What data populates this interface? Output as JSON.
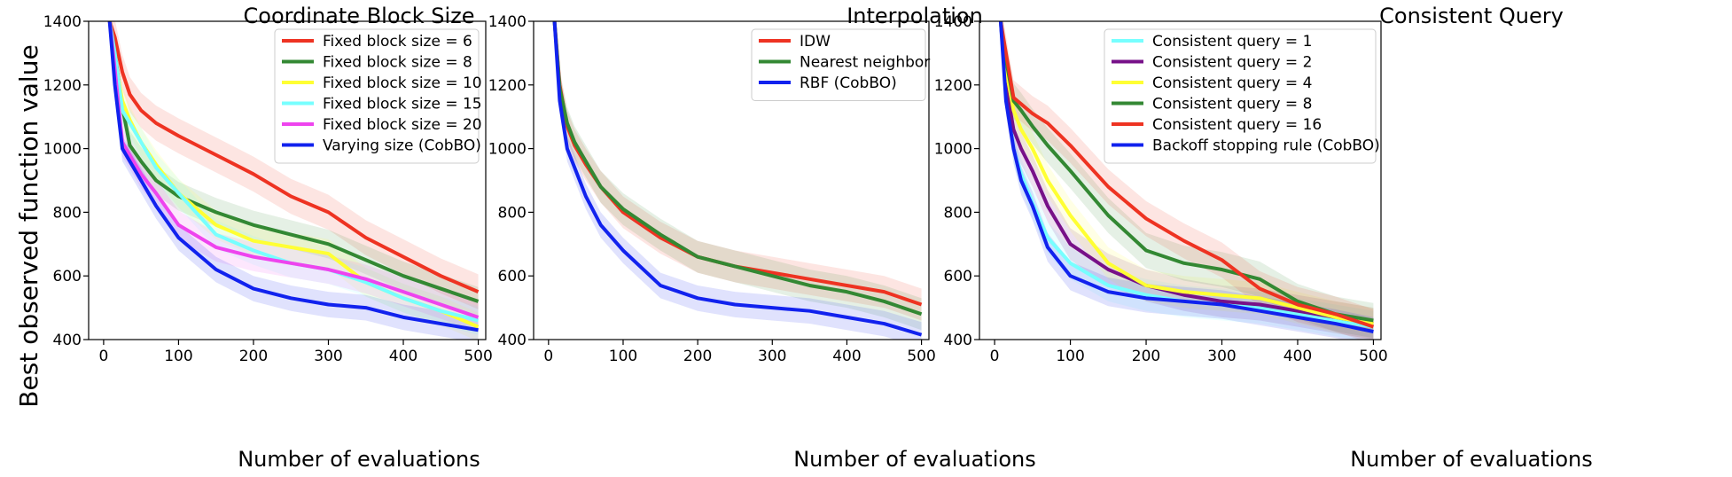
{
  "figure": {
    "ylabel": "Best observed function value"
  },
  "chart_data": [
    {
      "type": "line",
      "title": "Coordinate Block Size",
      "xlabel": "Number of evaluations",
      "ylabel": "Best observed function value",
      "xlim": [
        -20,
        510
      ],
      "ylim": [
        400,
        1400
      ],
      "xticks": [
        0,
        100,
        200,
        300,
        400,
        500
      ],
      "yticks": [
        400,
        600,
        800,
        1000,
        1200,
        1400
      ],
      "legend_position": "top-right",
      "series": [
        {
          "name": "Fixed block size = 6",
          "color": "#ee3322",
          "x": [
            8,
            15,
            25,
            35,
            50,
            70,
            100,
            150,
            200,
            250,
            300,
            350,
            400,
            450,
            500
          ],
          "y": [
            1400,
            1350,
            1240,
            1170,
            1120,
            1080,
            1040,
            980,
            920,
            850,
            800,
            720,
            660,
            600,
            550
          ],
          "band": 55
        },
        {
          "name": "Fixed block size = 8",
          "color": "#338833",
          "x": [
            8,
            15,
            25,
            35,
            50,
            70,
            100,
            150,
            200,
            250,
            300,
            350,
            400,
            450,
            500
          ],
          "y": [
            1400,
            1300,
            1130,
            1010,
            960,
            900,
            850,
            800,
            760,
            730,
            700,
            650,
            600,
            560,
            520
          ],
          "band": 45
        },
        {
          "name": "Fixed block size = 10",
          "color": "#ffff33",
          "x": [
            8,
            15,
            25,
            35,
            50,
            70,
            100,
            150,
            200,
            250,
            300,
            350,
            400,
            450,
            500
          ],
          "y": [
            1400,
            1280,
            1150,
            1090,
            1020,
            950,
            860,
            760,
            710,
            690,
            670,
            580,
            530,
            490,
            440
          ],
          "band": 45
        },
        {
          "name": "Fixed block size = 15",
          "color": "#77ffff",
          "x": [
            8,
            15,
            25,
            35,
            50,
            70,
            100,
            150,
            200,
            250,
            300,
            350,
            400,
            450,
            500
          ],
          "y": [
            1400,
            1300,
            1120,
            1080,
            1020,
            940,
            860,
            730,
            680,
            640,
            620,
            580,
            530,
            490,
            460
          ],
          "band": 45
        },
        {
          "name": "Fixed block size = 20",
          "color": "#ee44ee",
          "x": [
            8,
            15,
            25,
            35,
            50,
            70,
            100,
            150,
            200,
            250,
            300,
            350,
            400,
            450,
            500
          ],
          "y": [
            1400,
            1250,
            1020,
            980,
            920,
            860,
            760,
            690,
            660,
            640,
            620,
            590,
            550,
            510,
            470
          ],
          "band": 45
        },
        {
          "name": "Varying size (CobBO)",
          "color": "#1122ee",
          "x": [
            8,
            15,
            25,
            35,
            50,
            70,
            100,
            150,
            200,
            250,
            300,
            350,
            400,
            450,
            500
          ],
          "y": [
            1400,
            1200,
            1000,
            960,
            900,
            820,
            720,
            620,
            560,
            530,
            510,
            500,
            470,
            450,
            430
          ],
          "band": 40
        }
      ]
    },
    {
      "type": "line",
      "title": "Interpolation",
      "xlabel": "Number of evaluations",
      "ylabel": "",
      "xlim": [
        -20,
        510
      ],
      "ylim": [
        400,
        1400
      ],
      "xticks": [
        0,
        100,
        200,
        300,
        400,
        500
      ],
      "yticks": [
        400,
        600,
        800,
        1000,
        1200,
        1400
      ],
      "legend_position": "top-right",
      "series": [
        {
          "name": "IDW",
          "color": "#ee3322",
          "x": [
            8,
            15,
            25,
            35,
            50,
            70,
            100,
            150,
            200,
            250,
            300,
            350,
            400,
            450,
            500
          ],
          "y": [
            1400,
            1200,
            1070,
            1010,
            950,
            880,
            800,
            720,
            660,
            630,
            610,
            590,
            570,
            550,
            510
          ],
          "band": 50
        },
        {
          "name": "Nearest neighbor",
          "color": "#338833",
          "x": [
            8,
            15,
            25,
            35,
            50,
            70,
            100,
            150,
            200,
            250,
            300,
            350,
            400,
            450,
            500
          ],
          "y": [
            1400,
            1190,
            1080,
            1020,
            960,
            880,
            810,
            730,
            660,
            630,
            600,
            570,
            550,
            520,
            480
          ],
          "band": 50
        },
        {
          "name": "RBF (CobBO)",
          "color": "#1122ee",
          "x": [
            8,
            15,
            25,
            35,
            50,
            70,
            100,
            150,
            200,
            250,
            300,
            350,
            400,
            450,
            500
          ],
          "y": [
            1400,
            1150,
            1000,
            940,
            850,
            760,
            680,
            570,
            530,
            510,
            500,
            490,
            470,
            450,
            415
          ],
          "band": 40
        }
      ]
    },
    {
      "type": "line",
      "title": "Consistent Query",
      "xlabel": "Number of evaluations",
      "ylabel": "",
      "xlim": [
        -20,
        510
      ],
      "ylim": [
        400,
        1400
      ],
      "xticks": [
        0,
        100,
        200,
        300,
        400,
        500
      ],
      "yticks": [
        400,
        600,
        800,
        1000,
        1200,
        1400
      ],
      "legend_position": "top-right",
      "series": [
        {
          "name": "Consistent query = 1",
          "color": "#77ffff",
          "x": [
            8,
            15,
            25,
            35,
            50,
            70,
            100,
            150,
            200,
            250,
            300,
            350,
            400,
            450,
            500
          ],
          "y": [
            1400,
            1180,
            1000,
            920,
            830,
            720,
            640,
            570,
            540,
            520,
            510,
            500,
            480,
            460,
            440
          ],
          "band": 50
        },
        {
          "name": "Consistent query = 2",
          "color": "#771188",
          "x": [
            8,
            15,
            25,
            35,
            50,
            70,
            100,
            150,
            200,
            250,
            300,
            350,
            400,
            450,
            500
          ],
          "y": [
            1400,
            1200,
            1060,
            1000,
            930,
            820,
            700,
            620,
            570,
            540,
            520,
            510,
            490,
            470,
            450
          ],
          "band": 50
        },
        {
          "name": "Consistent query = 4",
          "color": "#ffff33",
          "x": [
            8,
            15,
            25,
            35,
            50,
            70,
            100,
            150,
            200,
            250,
            300,
            350,
            400,
            450,
            500
          ],
          "y": [
            1400,
            1250,
            1120,
            1060,
            1000,
            900,
            790,
            640,
            570,
            550,
            540,
            530,
            500,
            470,
            450
          ],
          "band": 50
        },
        {
          "name": "Consistent query = 8",
          "color": "#338833",
          "x": [
            8,
            15,
            25,
            35,
            50,
            70,
            100,
            150,
            200,
            250,
            300,
            350,
            400,
            450,
            500
          ],
          "y": [
            1400,
            1280,
            1150,
            1120,
            1070,
            1010,
            930,
            790,
            680,
            640,
            620,
            590,
            520,
            480,
            460
          ],
          "band": 55
        },
        {
          "name": "Consistent query = 16",
          "color": "#ee3322",
          "x": [
            8,
            15,
            25,
            35,
            50,
            70,
            100,
            150,
            200,
            250,
            300,
            350,
            400,
            450,
            500
          ],
          "y": [
            1400,
            1300,
            1160,
            1140,
            1110,
            1080,
            1010,
            880,
            780,
            710,
            650,
            560,
            510,
            480,
            440
          ],
          "band": 55
        },
        {
          "name": "Backoff stopping rule (CobBO)",
          "color": "#1122ee",
          "x": [
            8,
            15,
            25,
            35,
            50,
            70,
            100,
            150,
            200,
            250,
            300,
            350,
            400,
            450,
            500
          ],
          "y": [
            1400,
            1150,
            1000,
            900,
            820,
            690,
            600,
            550,
            530,
            520,
            510,
            490,
            470,
            450,
            425
          ],
          "band": 45
        }
      ]
    }
  ]
}
